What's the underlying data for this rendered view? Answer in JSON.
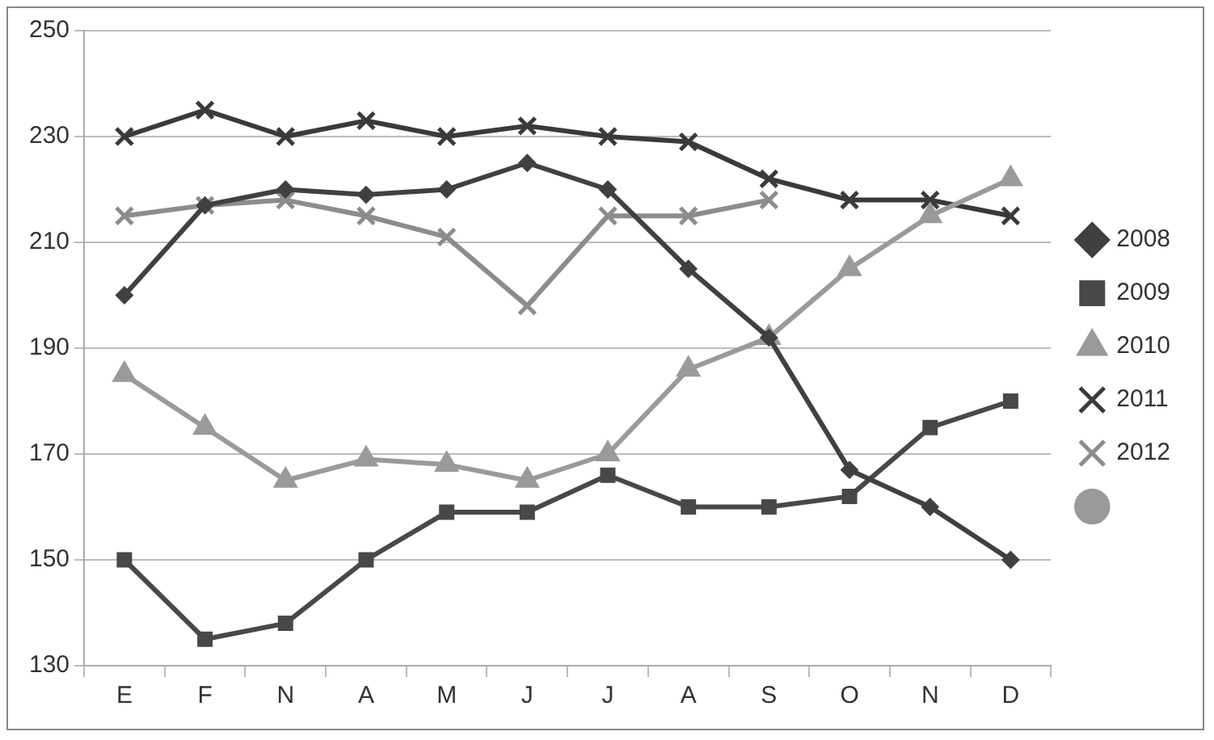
{
  "chart_data": {
    "type": "line",
    "categories": [
      "E",
      "F",
      "N",
      "A",
      "M",
      "J",
      "J",
      "A",
      "S",
      "O",
      "N",
      "D"
    ],
    "series": [
      {
        "name": "2008",
        "color": "#404040",
        "marker": "diamond",
        "values": [
          200,
          217,
          220,
          219,
          220,
          225,
          220,
          205,
          192,
          167,
          160,
          150
        ]
      },
      {
        "name": "2009",
        "color": "#484848",
        "marker": "square",
        "values": [
          150,
          135,
          138,
          150,
          159,
          159,
          166,
          160,
          160,
          162,
          175,
          180
        ]
      },
      {
        "name": "2010",
        "color": "#9a9a9a",
        "marker": "triangle",
        "values": [
          185,
          175,
          165,
          169,
          168,
          165,
          170,
          186,
          192,
          205,
          215,
          222
        ]
      },
      {
        "name": "2011",
        "color": "#3a3a3a",
        "marker": "cross",
        "values": [
          230,
          235,
          230,
          233,
          230,
          232,
          230,
          229,
          222,
          218,
          218,
          215
        ]
      },
      {
        "name": "2012",
        "color": "#8c8c8c",
        "marker": "cross",
        "values": [
          215,
          217,
          218,
          215,
          211,
          198,
          215,
          215,
          218,
          null,
          null,
          null
        ]
      },
      {
        "color": "#9a9a9a",
        "marker": "circle",
        "values": [
          null,
          null,
          null,
          null,
          null,
          null,
          null,
          null,
          null,
          null,
          null,
          null
        ]
      }
    ],
    "ylim": [
      130,
      250
    ],
    "yticks": [
      130,
      150,
      170,
      190,
      210,
      230,
      250
    ],
    "grid": "y",
    "legend": "right"
  }
}
